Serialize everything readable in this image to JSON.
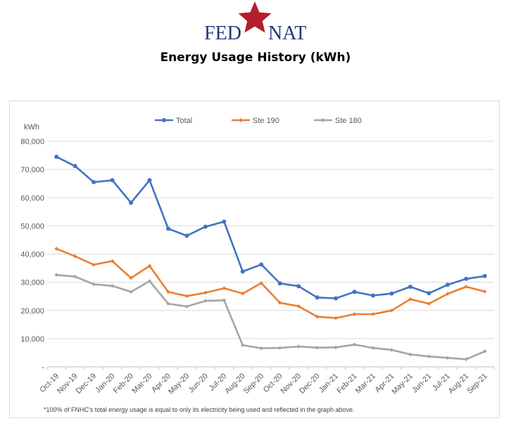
{
  "header": {
    "logo_text_left": "FED",
    "logo_text_right": "NAT",
    "logo_color": "#1f3a7a",
    "star_color": "#b41e2b",
    "title": "Energy Usage History (kWh)"
  },
  "footnote": "*100% of FNHC's total energy usage is equal to only its electricity being used and reflected in the graph above.",
  "chart_data": {
    "type": "line",
    "title": "",
    "xlabel": "",
    "ylabel": "kWh",
    "ylim": [
      0,
      80000
    ],
    "y_ticks": [
      "-",
      "10,000",
      "20,000",
      "30,000",
      "40,000",
      "50,000",
      "60,000",
      "70,000",
      "80,000"
    ],
    "grid": "horizontal",
    "legend_position": "top",
    "categories": [
      "Oct-19",
      "Nov-19",
      "Dec-19",
      "Jan-20",
      "Feb-20",
      "Mar-20",
      "Apr-20",
      "May-20",
      "Jun-20",
      "Jul-20",
      "Aug-20",
      "Sep-20",
      "Oct-20",
      "Nov-20",
      "Dec-20",
      "Jan-21",
      "Feb-21",
      "Mar-21",
      "Apr-21",
      "May-21",
      "Jun-21",
      "Jul-21",
      "Aug-21",
      "Sep-21"
    ],
    "series": [
      {
        "name": "Total",
        "color": "#4472c4",
        "marker": "circle",
        "values": [
          74500,
          71200,
          65500,
          66200,
          58200,
          66200,
          49000,
          46500,
          49700,
          51500,
          33800,
          36300,
          29600,
          28600,
          24600,
          24300,
          26600,
          25300,
          26000,
          28400,
          26100,
          29100,
          31200,
          32200
        ]
      },
      {
        "name": "Ste 190",
        "color": "#ed7d31",
        "marker": "diamond",
        "values": [
          41900,
          39200,
          36200,
          37500,
          31500,
          35800,
          26600,
          25100,
          26300,
          27900,
          26000,
          29700,
          22700,
          21500,
          17800,
          17300,
          18700,
          18700,
          20000,
          24000,
          22400,
          25900,
          28400,
          26700
        ]
      },
      {
        "name": "Ste 180",
        "color": "#a5a5a5",
        "marker": "diamond",
        "values": [
          32600,
          32000,
          29300,
          28700,
          26600,
          30400,
          22400,
          21400,
          23400,
          23600,
          7700,
          6600,
          6700,
          7200,
          6800,
          6900,
          7900,
          6700,
          6000,
          4400,
          3700,
          3200,
          2700,
          5500
        ]
      }
    ]
  }
}
